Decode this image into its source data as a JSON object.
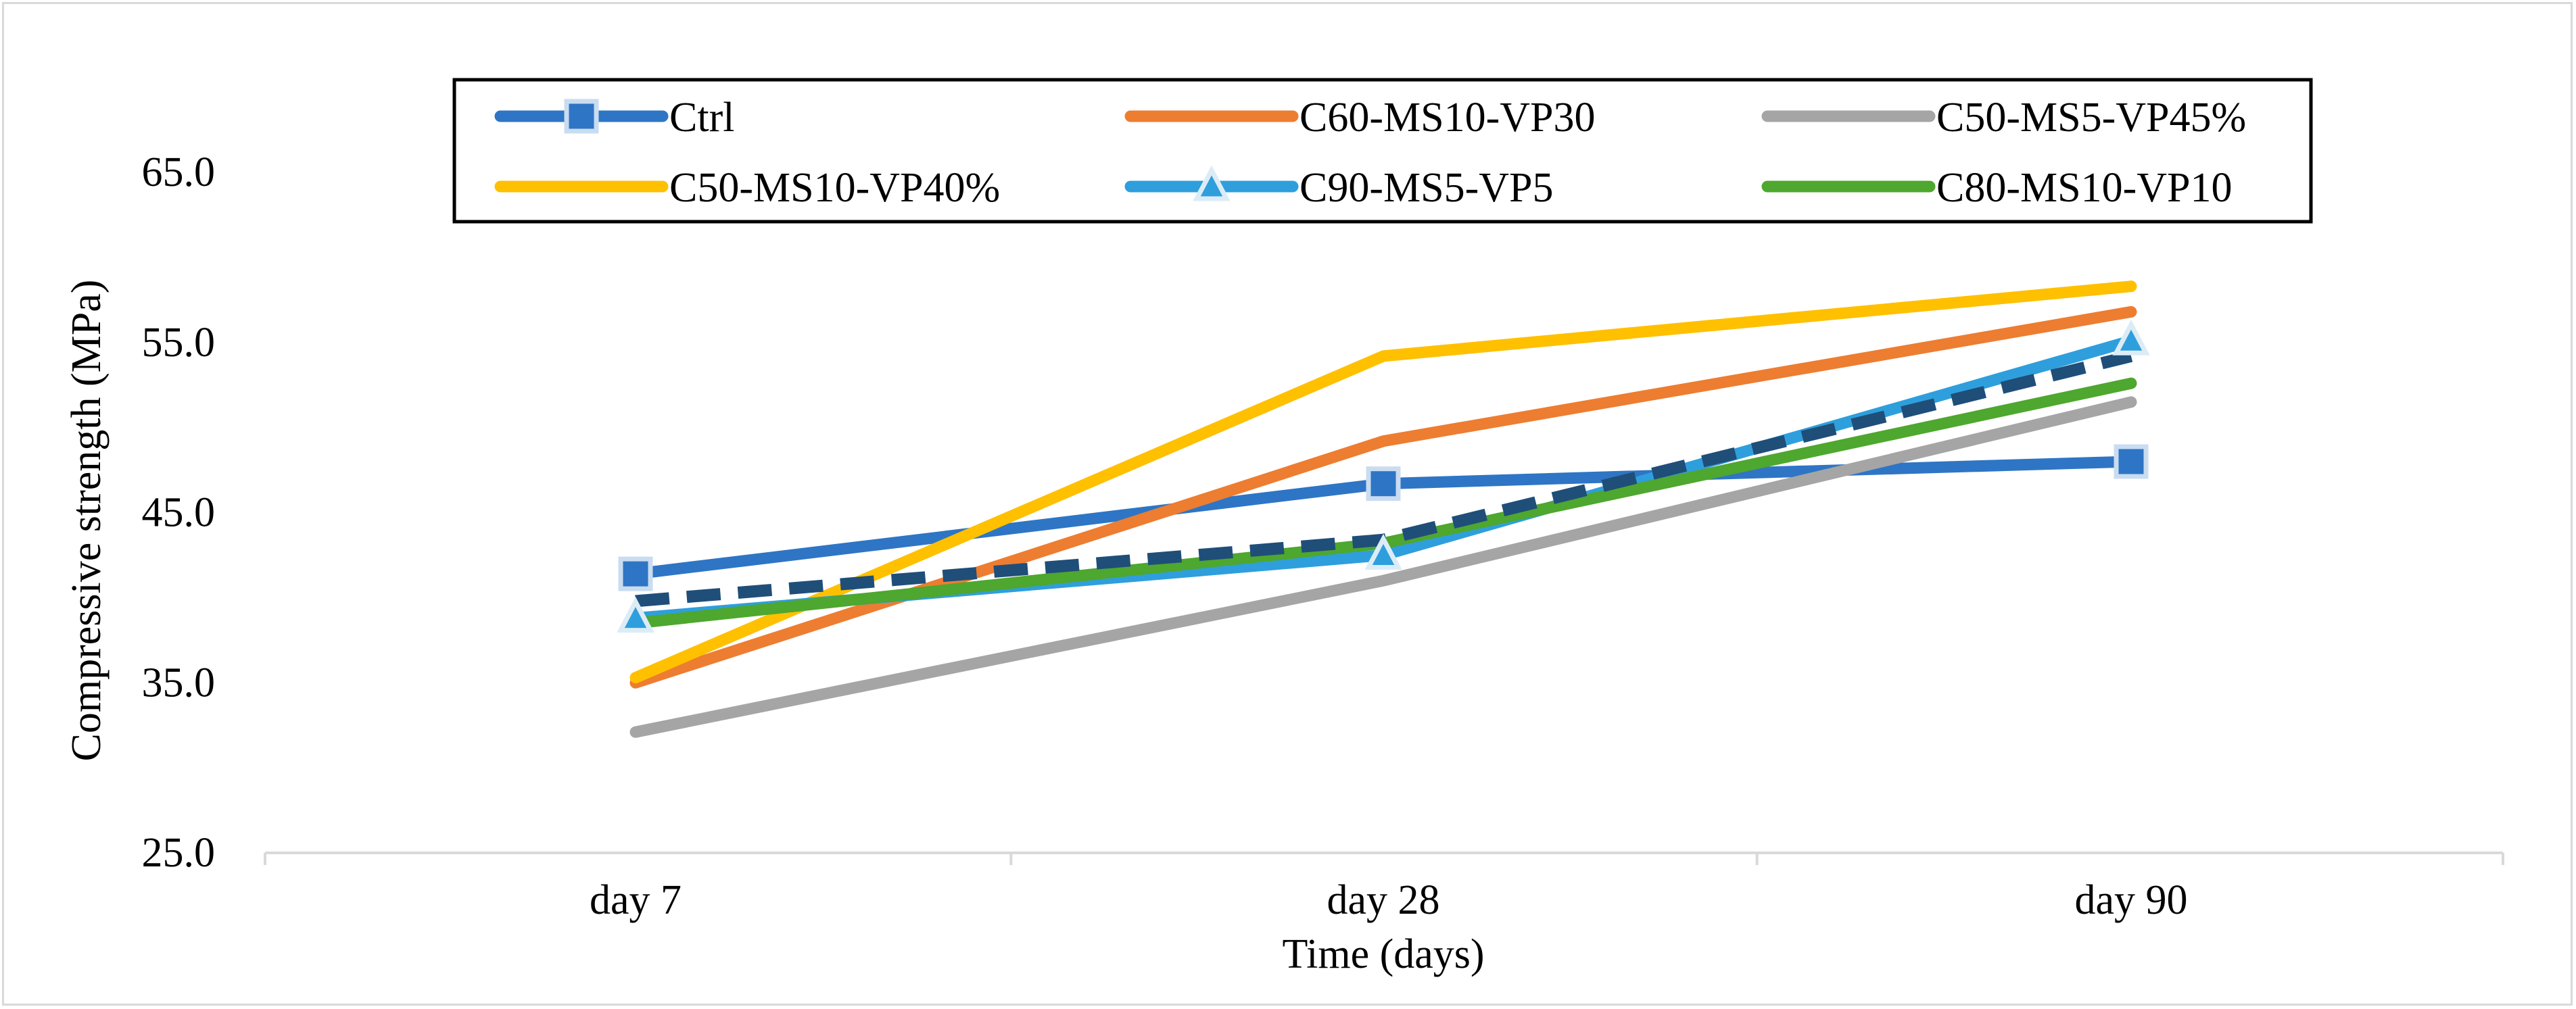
{
  "chart_data": {
    "type": "line",
    "title": "",
    "xlabel": "Time (days)",
    "ylabel": "Compressive strength (MPa)",
    "categories": [
      "day 7",
      "day 28",
      "day 90"
    ],
    "ylim": [
      25,
      70
    ],
    "yticks": [
      25,
      35,
      45,
      55,
      65
    ],
    "ytick_labels": [
      "25.0",
      "35.0",
      "45.0",
      "55.0",
      "65.0"
    ],
    "grid": false,
    "legend_position": "top",
    "series": [
      {
        "name": "Ctrl",
        "values": [
          41.4,
          46.7,
          48.0
        ],
        "color": "#2e75c5",
        "marker": "square"
      },
      {
        "name": "C60-MS10-VP30",
        "values": [
          35.0,
          49.2,
          56.8
        ],
        "color": "#ed7d31",
        "marker": "none"
      },
      {
        "name": "C50-MS5-VP45%",
        "values": [
          32.1,
          41.0,
          51.5
        ],
        "color": "#a5a5a5",
        "marker": "none"
      },
      {
        "name": "C50-MS10-VP40%",
        "values": [
          35.3,
          54.2,
          58.3
        ],
        "color": "#ffc000",
        "marker": "none"
      },
      {
        "name": "C90-MS5-VP5",
        "values": [
          38.8,
          42.5,
          55.1
        ],
        "color": "#2e9fdc",
        "marker": "triangle"
      },
      {
        "name": "C80-MS10-VP10",
        "values": [
          38.5,
          43.2,
          52.6
        ],
        "color": "#4ea72e",
        "marker": "none"
      }
    ],
    "trendline": {
      "name": "",
      "values": [
        39.8,
        43.4,
        54.2
      ],
      "color": "#1f4e79",
      "style": "dashed"
    }
  }
}
